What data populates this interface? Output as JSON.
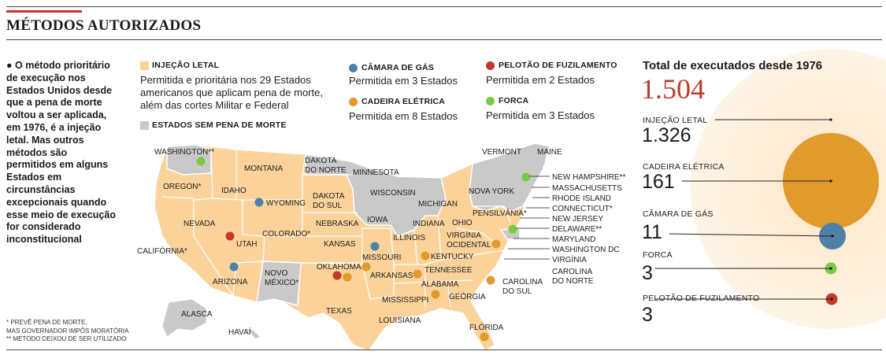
{
  "header": {
    "title": "MÉTODOS AUTORIZADOS"
  },
  "intro": {
    "text": "O método prioritário de execução nos Estados Unidos desde que a pena de morte voltou a ser aplicada, em 1976, é a injeção letal. Mas outros métodos são permitidos em alguns Estados em circunstâncias excepcionais quando esse meio de execução for considerado inconstitucional"
  },
  "footnotes": {
    "line1": "* PREVÊ PENA DE MORTE,",
    "line2": "MAS GOVERNADOR IMPÔS MORATÓRIA",
    "line3": "** MÉTODO DEIXOU DE SER UTILIZADO"
  },
  "colors": {
    "injecao": "#fbd39a",
    "sem_pena": "#c9c9c9",
    "camara": "#4f81a6",
    "cadeira": "#e19a2c",
    "pelotao": "#c0392b",
    "forca": "#7ac943",
    "accent": "#c0392b"
  },
  "legend": {
    "injecao": {
      "title": "INJEÇÃO LETAL",
      "line1": "Permitida e prioritária nos 29 Estados",
      "line2": "americanos que aplicam pena de morte,",
      "line3": "além das cortes Militar e Federal"
    },
    "sem_pena": {
      "title": "ESTADOS SEM PENA DE MORTE"
    },
    "camara": {
      "title": "CÂMARA DE GÁS",
      "body": "Permitida em 3 Estados"
    },
    "cadeira": {
      "title": "CADEIRA ELÉTRICA",
      "body": "Permitida em 8 Estados"
    },
    "pelotao": {
      "title": "PELOTÃO DE FUZILAMENTO",
      "body": "Permitida em 2 Estados"
    },
    "forca": {
      "title": "FORCA",
      "body": "Permitida em 3 Estados"
    }
  },
  "states": {
    "washington": "WASHINGTON**",
    "oregon": "OREGON*",
    "california": "CALIFÓRNIA*",
    "nevada": "NEVADA",
    "idaho": "IDAHO",
    "montana": "MONTANA",
    "wyoming": "WYOMING",
    "utah": "UTAH",
    "arizona": "ARIZONA",
    "colorado": "COLORADO*",
    "novo_mexico_1": "NOVO",
    "novo_mexico_2": "MÉXICO*",
    "dakota_norte_1": "DAKOTA",
    "dakota_norte_2": "DO NORTE",
    "dakota_sul_1": "DAKOTA",
    "dakota_sul_2": "DO SUL",
    "nebraska": "NEBRASKA",
    "kansas": "KANSAS",
    "oklahoma": "OKLAHOMA",
    "texas": "TEXAS",
    "minnesota": "MINNESOTA",
    "iowa": "IOWA",
    "missouri": "MISSOURI",
    "arkansas": "ARKANSAS",
    "louisiana": "LOUISIANA",
    "wisconsin": "WISCONSIN",
    "illinois": "ILLINOIS",
    "michigan": "MICHIGAN",
    "indiana": "INDIANA",
    "ohio": "OHIO",
    "kentucky": "KENTUCKY",
    "tennessee": "TENNESSEE",
    "mississippi": "MISSISSIPPI",
    "alabama": "ALABAMA",
    "georgia": "GEÓRGIA",
    "florida": "FLÓRIDA",
    "virginia_oc_1": "VIRGÍNIA",
    "virginia_oc_2": "OCIDENTAL",
    "nova_york": "NOVA YORK",
    "vermont": "VERMONT",
    "maine": "MAINE",
    "alasca": "ALASCA",
    "havai": "HAVAÍ",
    "new_hampshire": "NEW HAMPSHIRE**",
    "massachusetts": "MASSACHUSETTS",
    "rhode_island": "RHODE ISLAND",
    "connecticut": "CONNECTICUT*",
    "pensilvania": "PENSILVÂNIA*",
    "new_jersey": "NEW JERSEY",
    "delaware": "DELAWARE**",
    "maryland": "MARYLAND",
    "washington_dc": "WASHINGTON DC",
    "virginia": "VIRGÍNIA",
    "carolina_norte_1": "CAROLINA",
    "carolina_norte_2": "DO NORTE",
    "carolina_sul_1": "CAROLINA",
    "carolina_sul_2": "DO SUL"
  },
  "totals": {
    "title": "Total de executados desde 1976",
    "value": "1.504",
    "methods": [
      {
        "label": "INJEÇÃO LETAL",
        "value": "1.326",
        "color": "#fbd39a"
      },
      {
        "label": "CADEIRA ELÉTRICA",
        "value": "161",
        "color": "#e19a2c"
      },
      {
        "label": "CÂMARA DE GÁS",
        "value": "11",
        "color": "#4f81a6"
      },
      {
        "label": "FORCA",
        "value": "3",
        "color": "#7ac943"
      },
      {
        "label": "PELOTÃO DE FUZILAMENTO",
        "value": "3",
        "color": "#c0392b"
      }
    ]
  }
}
